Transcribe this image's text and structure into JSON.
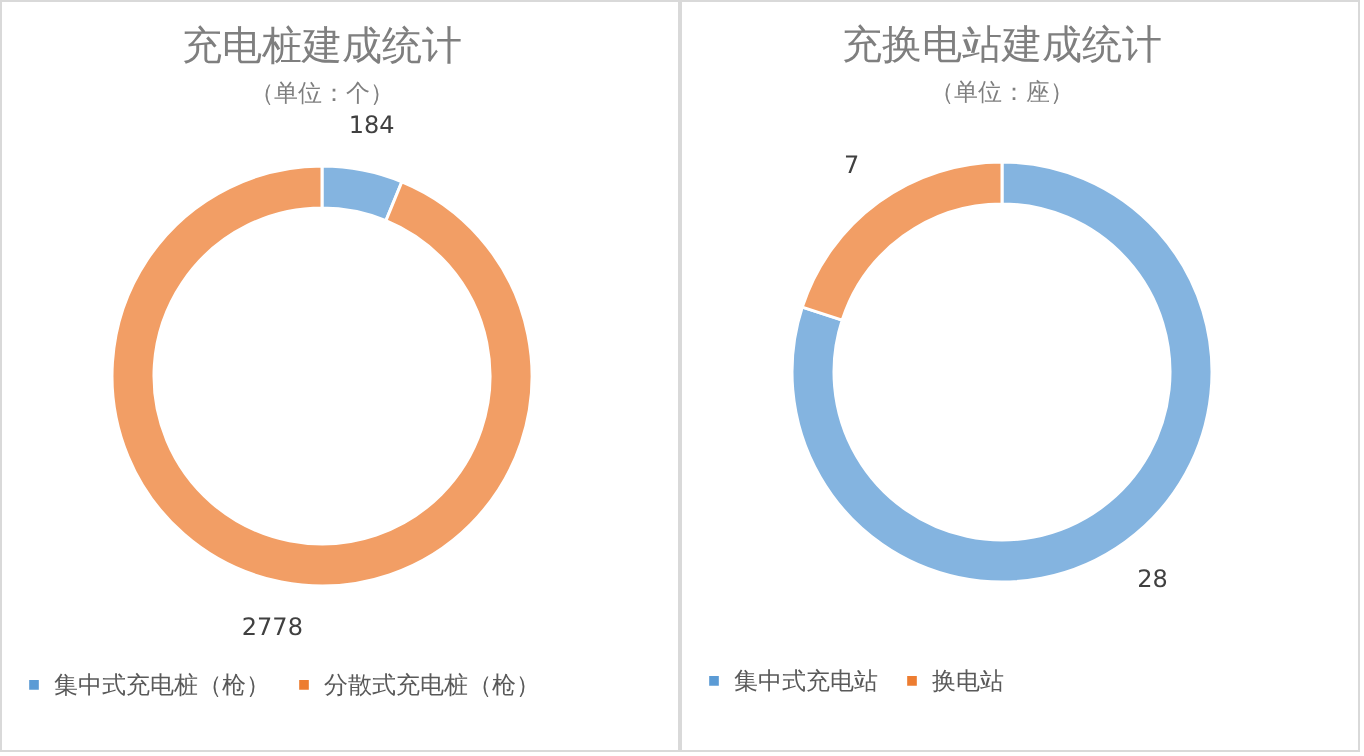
{
  "chart_data": [
    {
      "type": "donut",
      "title": "充电桩建成统计",
      "subtitle": "（单位：个）",
      "categories": [
        "集中式充电桩（枪）",
        "分散式充电桩（枪）"
      ],
      "values": [
        184,
        2778
      ],
      "colors": [
        "#5b9bd5",
        "#ed7d31"
      ],
      "data_labels": true,
      "legend": "bottom"
    },
    {
      "type": "donut",
      "title": "充换电站建成统计",
      "subtitle": "（单位：座）",
      "categories": [
        "集中式充电站",
        "换电站"
      ],
      "values": [
        28,
        7
      ],
      "colors": [
        "#5b9bd5",
        "#ed7d31"
      ],
      "data_labels": true,
      "legend": "bottom"
    }
  ]
}
